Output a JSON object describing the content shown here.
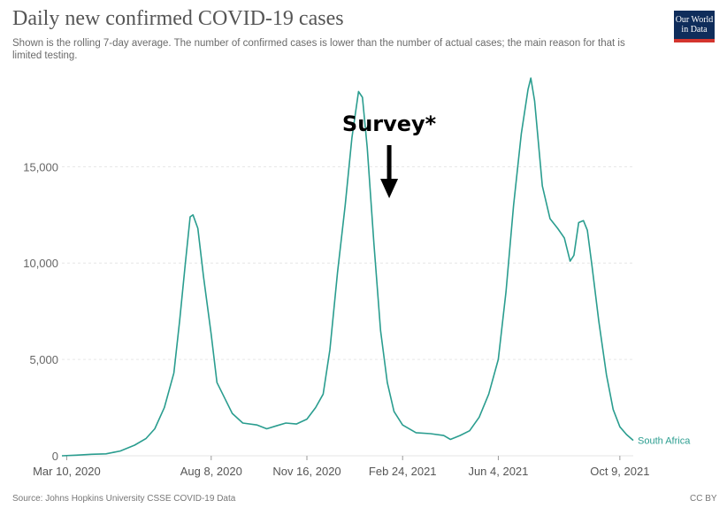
{
  "header": {
    "title": "Daily new confirmed COVID-19 cases",
    "subtitle": "Shown is the rolling 7-day average. The number of confirmed cases is lower than the number of actual cases; the main reason for that is limited testing.",
    "logo_line1": "Our World",
    "logo_line2": "in Data"
  },
  "footer": {
    "source": "Source: Johns Hopkins University CSSE COVID-19 Data",
    "license": "CC BY"
  },
  "annotation": {
    "text": "Survey*",
    "date": "2021-02-10"
  },
  "colors": {
    "series": "#2a9d8f",
    "grid": "#e6e6e6",
    "arrow": "#000000",
    "logo_bg": "#0f2d5b",
    "logo_accent": "#d4352e"
  },
  "chart_data": {
    "type": "line",
    "title": "Daily new confirmed COVID-19 cases",
    "ylim": [
      0,
      19700
    ],
    "yticks": [
      {
        "value": 0,
        "label": "0"
      },
      {
        "value": 5000,
        "label": "5,000"
      },
      {
        "value": 10000,
        "label": "10,000"
      },
      {
        "value": 15000,
        "label": "15,000"
      }
    ],
    "xticks": [
      {
        "date": "2020-03-10",
        "label": "Mar 10, 2020"
      },
      {
        "date": "2020-08-08",
        "label": "Aug 8, 2020"
      },
      {
        "date": "2020-11-16",
        "label": "Nov 16, 2020"
      },
      {
        "date": "2021-02-24",
        "label": "Feb 24, 2021"
      },
      {
        "date": "2021-06-04",
        "label": "Jun 4, 2021"
      },
      {
        "date": "2021-10-09",
        "label": "Oct 9, 2021"
      }
    ],
    "grid": true,
    "series": [
      {
        "name": "South Africa",
        "points": [
          [
            "2020-03-05",
            0
          ],
          [
            "2020-03-20",
            30
          ],
          [
            "2020-04-05",
            80
          ],
          [
            "2020-04-20",
            100
          ],
          [
            "2020-05-05",
            250
          ],
          [
            "2020-05-20",
            550
          ],
          [
            "2020-06-01",
            900
          ],
          [
            "2020-06-10",
            1400
          ],
          [
            "2020-06-20",
            2500
          ],
          [
            "2020-06-30",
            4300
          ],
          [
            "2020-07-06",
            7000
          ],
          [
            "2020-07-12",
            10000
          ],
          [
            "2020-07-17",
            12400
          ],
          [
            "2020-07-20",
            12500
          ],
          [
            "2020-07-25",
            11800
          ],
          [
            "2020-07-31",
            9300
          ],
          [
            "2020-08-08",
            6300
          ],
          [
            "2020-08-14",
            3800
          ],
          [
            "2020-08-20",
            3200
          ],
          [
            "2020-08-30",
            2200
          ],
          [
            "2020-09-10",
            1700
          ],
          [
            "2020-09-25",
            1600
          ],
          [
            "2020-10-05",
            1400
          ],
          [
            "2020-10-15",
            1550
          ],
          [
            "2020-10-25",
            1700
          ],
          [
            "2020-11-05",
            1650
          ],
          [
            "2020-11-16",
            1900
          ],
          [
            "2020-11-25",
            2500
          ],
          [
            "2020-12-03",
            3200
          ],
          [
            "2020-12-10",
            5500
          ],
          [
            "2020-12-18",
            9500
          ],
          [
            "2020-12-26",
            13000
          ],
          [
            "2021-01-02",
            16500
          ],
          [
            "2021-01-09",
            18900
          ],
          [
            "2021-01-13",
            18600
          ],
          [
            "2021-01-18",
            16000
          ],
          [
            "2021-01-25",
            11000
          ],
          [
            "2021-02-01",
            6500
          ],
          [
            "2021-02-08",
            3800
          ],
          [
            "2021-02-15",
            2300
          ],
          [
            "2021-02-24",
            1600
          ],
          [
            "2021-03-10",
            1200
          ],
          [
            "2021-03-25",
            1150
          ],
          [
            "2021-04-08",
            1050
          ],
          [
            "2021-04-15",
            850
          ],
          [
            "2021-04-25",
            1050
          ],
          [
            "2021-05-05",
            1300
          ],
          [
            "2021-05-15",
            2000
          ],
          [
            "2021-05-25",
            3200
          ],
          [
            "2021-06-04",
            5000
          ],
          [
            "2021-06-12",
            8500
          ],
          [
            "2021-06-20",
            13000
          ],
          [
            "2021-06-28",
            16700
          ],
          [
            "2021-07-05",
            19000
          ],
          [
            "2021-07-08",
            19600
          ],
          [
            "2021-07-12",
            18400
          ],
          [
            "2021-07-20",
            14000
          ],
          [
            "2021-07-28",
            12300
          ],
          [
            "2021-08-05",
            11800
          ],
          [
            "2021-08-12",
            11300
          ],
          [
            "2021-08-18",
            10100
          ],
          [
            "2021-08-22",
            10400
          ],
          [
            "2021-08-27",
            12100
          ],
          [
            "2021-09-01",
            12200
          ],
          [
            "2021-09-05",
            11700
          ],
          [
            "2021-09-10",
            9800
          ],
          [
            "2021-09-17",
            7000
          ],
          [
            "2021-09-25",
            4200
          ],
          [
            "2021-10-02",
            2400
          ],
          [
            "2021-10-09",
            1500
          ],
          [
            "2021-10-16",
            1100
          ],
          [
            "2021-10-23",
            800
          ]
        ]
      }
    ]
  }
}
